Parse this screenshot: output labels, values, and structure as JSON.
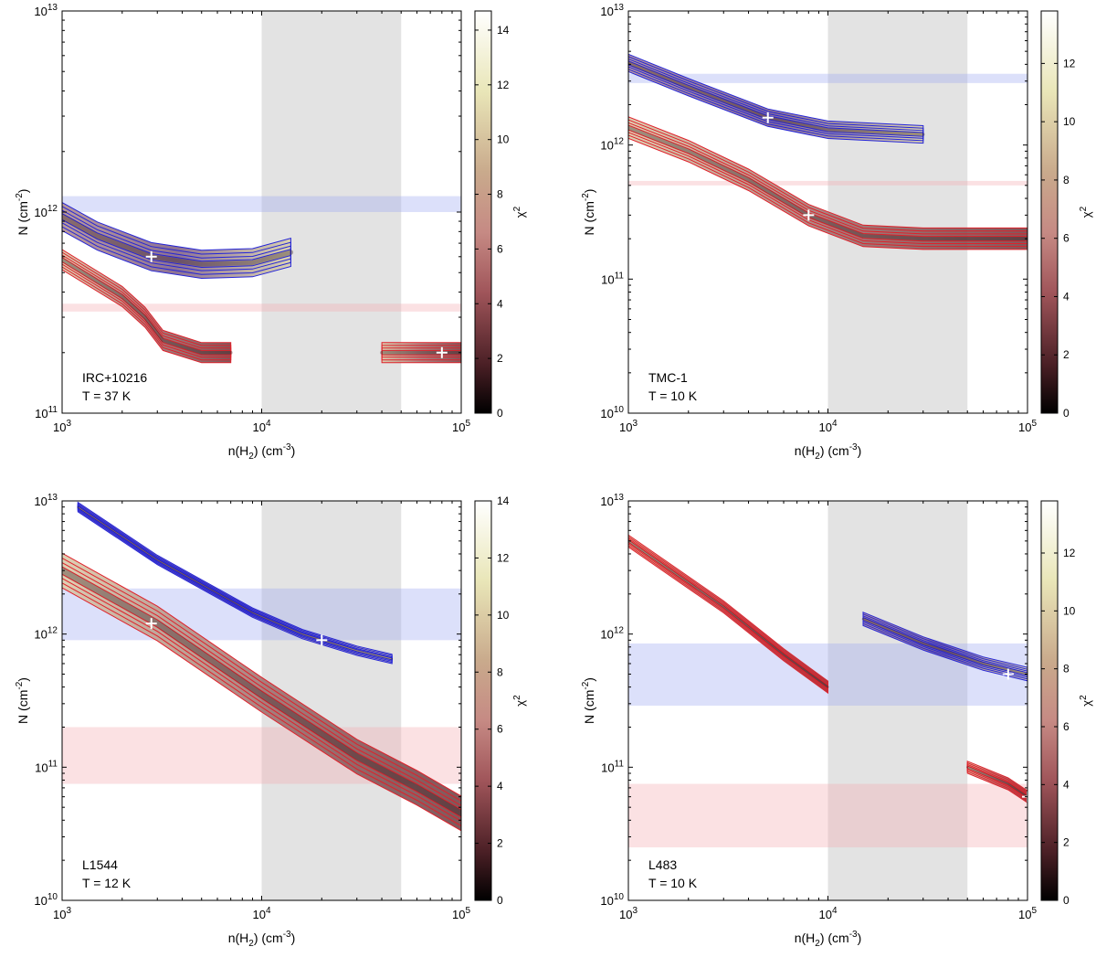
{
  "figure": {
    "colorbar_label_main": "χ",
    "colorbar_label_sup": "2",
    "xlabel_main": "n(H",
    "xlabel_sub": "2",
    "xlabel_unit": ") (cm",
    "xlabel_exp": "-3",
    "xlabel_close": ")",
    "ylabel_main": "N (cm",
    "ylabel_exp": "-2",
    "ylabel_close": ")"
  },
  "chart_data": [
    {
      "type": "contour",
      "id": "irc",
      "source": "IRC+10216",
      "temperature": "T = 37 K",
      "x_scale": "log",
      "xlim": [
        1000,
        100000
      ],
      "ylim": [
        100000000000,
        10000000000000
      ],
      "x_ticks": [
        {
          "base": "10",
          "exp": "3",
          "value": 1000
        },
        {
          "base": "10",
          "exp": "4",
          "value": 10000
        },
        {
          "base": "10",
          "exp": "5",
          "value": 100000
        }
      ],
      "y_ticks": [
        {
          "base": "10",
          "exp": "11",
          "value": 100000000000
        },
        {
          "base": "10",
          "exp": "12",
          "value": 1000000000000
        },
        {
          "base": "10",
          "exp": "13",
          "value": 10000000000000
        }
      ],
      "density_band": [
        10000,
        50000
      ],
      "blue_band": [
        1000000000000,
        1200000000000
      ],
      "red_band": [
        320000000000,
        350000000000
      ],
      "colorbar_range": [
        0,
        14.7
      ],
      "colorbar_ticks": [
        "0",
        "2",
        "4",
        "6",
        "8",
        "10",
        "12",
        "14"
      ],
      "colorbar_values": [
        0,
        2,
        4,
        6,
        8,
        10,
        12,
        14
      ],
      "blue_valley": [
        [
          1000,
          950000000000
        ],
        [
          1500,
          760000000000
        ],
        [
          2800,
          600000000000
        ],
        [
          5000,
          550000000000
        ],
        [
          9000,
          560000000000
        ],
        [
          14000,
          630000000000
        ]
      ],
      "blue_width": 0.07,
      "red_valleys": [
        [
          [
            1000,
            580000000000
          ],
          [
            2000,
            380000000000
          ],
          [
            2600,
            300000000000
          ],
          [
            3200,
            230000000000
          ],
          [
            5000,
            200000000000
          ],
          [
            7000,
            200000000000
          ]
        ],
        [
          [
            40000,
            200000000000
          ],
          [
            80000,
            200000000000
          ],
          [
            100000,
            200000000000
          ]
        ]
      ],
      "red_width": 0.05,
      "best_fits": [
        [
          2800,
          600000000000
        ],
        [
          80000,
          200000000000
        ]
      ]
    },
    {
      "type": "contour",
      "id": "tmc",
      "source": "TMC-1",
      "temperature": "T = 10 K",
      "x_scale": "log",
      "xlim": [
        1000,
        100000
      ],
      "ylim": [
        10000000000,
        10000000000000
      ],
      "x_ticks": [
        {
          "base": "10",
          "exp": "3",
          "value": 1000
        },
        {
          "base": "10",
          "exp": "4",
          "value": 10000
        },
        {
          "base": "10",
          "exp": "5",
          "value": 100000
        }
      ],
      "y_ticks": [
        {
          "base": "10",
          "exp": "10",
          "value": 10000000000
        },
        {
          "base": "10",
          "exp": "11",
          "value": 100000000000
        },
        {
          "base": "10",
          "exp": "12",
          "value": 1000000000000
        },
        {
          "base": "10",
          "exp": "13",
          "value": 10000000000000
        }
      ],
      "density_band": [
        10000,
        50000
      ],
      "blue_band": [
        2900000000000,
        3400000000000
      ],
      "red_band": [
        500000000000,
        540000000000
      ],
      "colorbar_range": [
        0,
        13.8
      ],
      "colorbar_ticks": [
        "0",
        "2",
        "4",
        "6",
        "8",
        "10",
        "12"
      ],
      "colorbar_values": [
        0,
        2,
        4,
        6,
        8,
        10,
        12
      ],
      "blue_valley": [
        [
          1000,
          4100000000000
        ],
        [
          2000,
          2700000000000
        ],
        [
          5000,
          1600000000000
        ],
        [
          10000,
          1300000000000
        ],
        [
          30000,
          1200000000000
        ]
      ],
      "blue_width": 0.065,
      "red_valleys": [
        [
          [
            1000,
            1350000000000
          ],
          [
            2000,
            900000000000
          ],
          [
            4000,
            550000000000
          ],
          [
            8000,
            300000000000
          ],
          [
            15000,
            210000000000
          ],
          [
            30000,
            200000000000
          ],
          [
            100000,
            200000000000
          ]
        ]
      ],
      "red_width": 0.08,
      "best_fits": [
        [
          5000,
          1600000000000
        ],
        [
          8000,
          300000000000
        ]
      ]
    },
    {
      "type": "contour",
      "id": "l1544",
      "source": "L1544",
      "temperature": "T = 12 K",
      "x_scale": "log",
      "xlim": [
        1000,
        100000
      ],
      "ylim": [
        10000000000,
        10000000000000
      ],
      "x_ticks": [
        {
          "base": "10",
          "exp": "3",
          "value": 1000
        },
        {
          "base": "10",
          "exp": "4",
          "value": 10000
        },
        {
          "base": "10",
          "exp": "5",
          "value": 100000
        }
      ],
      "y_ticks": [
        {
          "base": "10",
          "exp": "10",
          "value": 10000000000
        },
        {
          "base": "10",
          "exp": "11",
          "value": 100000000000
        },
        {
          "base": "10",
          "exp": "12",
          "value": 1000000000000
        },
        {
          "base": "10",
          "exp": "13",
          "value": 10000000000000
        }
      ],
      "density_band": [
        10000,
        50000
      ],
      "blue_band": [
        900000000000,
        2200000000000
      ],
      "red_band": [
        75000000000,
        200000000000
      ],
      "colorbar_range": [
        0,
        14
      ],
      "colorbar_ticks": [
        "0",
        "2",
        "4",
        "6",
        "8",
        "10",
        "12",
        "14"
      ],
      "colorbar_values": [
        0,
        2,
        4,
        6,
        8,
        10,
        12,
        14
      ],
      "blue_valley": [
        [
          1200,
          9000000000000
        ],
        [
          3000,
          3600000000000
        ],
        [
          9000,
          1450000000000
        ],
        [
          16000,
          1000000000000
        ],
        [
          30000,
          750000000000
        ],
        [
          45000,
          650000000000
        ]
      ],
      "blue_width": 0.035,
      "red_valleys": [
        [
          [
            1000,
            3000000000000
          ],
          [
            3000,
            1200000000000
          ],
          [
            10000,
            350000000000
          ],
          [
            30000,
            120000000000
          ],
          [
            60000,
            70000000000
          ],
          [
            100000,
            45000000000
          ]
        ]
      ],
      "red_width": 0.13,
      "best_fits": [
        [
          2800,
          1200000000000
        ],
        [
          20000,
          900000000000
        ]
      ]
    },
    {
      "type": "contour",
      "id": "l483",
      "source": "L483",
      "temperature": "T = 10 K",
      "x_scale": "log",
      "xlim": [
        1000,
        100000
      ],
      "ylim": [
        10000000000,
        10000000000000
      ],
      "x_ticks": [
        {
          "base": "10",
          "exp": "3",
          "value": 1000
        },
        {
          "base": "10",
          "exp": "4",
          "value": 10000
        },
        {
          "base": "10",
          "exp": "5",
          "value": 100000
        }
      ],
      "y_ticks": [
        {
          "base": "10",
          "exp": "10",
          "value": 10000000000
        },
        {
          "base": "10",
          "exp": "11",
          "value": 100000000000
        },
        {
          "base": "10",
          "exp": "12",
          "value": 1000000000000
        },
        {
          "base": "10",
          "exp": "13",
          "value": 10000000000000
        }
      ],
      "density_band": [
        10000,
        50000
      ],
      "blue_band": [
        290000000000,
        850000000000
      ],
      "red_band": [
        25000000000,
        75000000000
      ],
      "colorbar_range": [
        0,
        13.8
      ],
      "colorbar_ticks": [
        "0",
        "2",
        "4",
        "6",
        "8",
        "10",
        "12"
      ],
      "colorbar_values": [
        0,
        2,
        4,
        6,
        8,
        10,
        12
      ],
      "blue_valley": [
        [
          15000,
          1300000000000
        ],
        [
          30000,
          850000000000
        ],
        [
          60000,
          600000000000
        ],
        [
          100000,
          500000000000
        ]
      ],
      "blue_width": 0.05,
      "red_valleys": [
        [
          [
            1000,
            5000000000000
          ],
          [
            3000,
            1600000000000
          ],
          [
            6000,
            700000000000
          ],
          [
            10000,
            400000000000
          ]
        ],
        [
          [
            50000,
            100000000000
          ],
          [
            80000,
            75000000000
          ],
          [
            100000,
            60000000000
          ]
        ]
      ],
      "red_width": 0.045,
      "best_fits": [
        [
          80000,
          500000000000
        ],
        [
          100000,
          60000000000
        ]
      ]
    }
  ]
}
